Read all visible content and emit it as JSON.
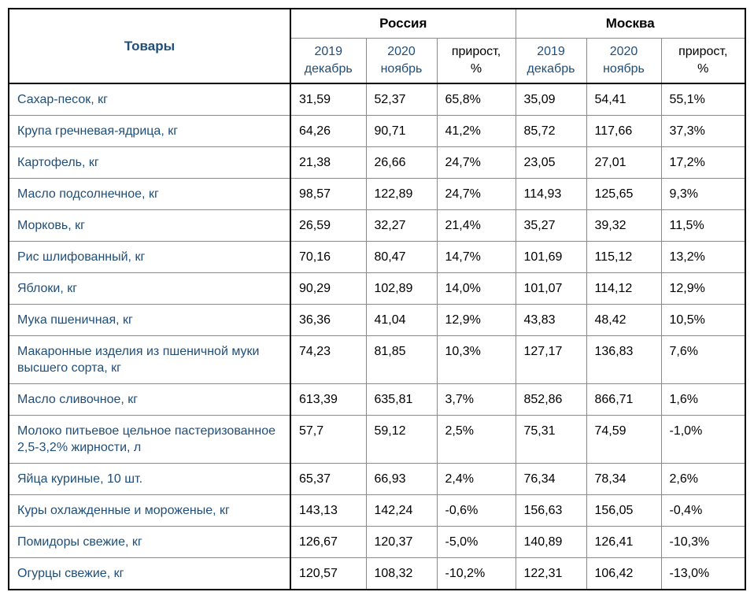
{
  "table": {
    "title_column": "Товары",
    "region_groups": [
      "Россия",
      "Москва"
    ],
    "column_headers": [
      {
        "line1": "2019",
        "line2": "декабрь"
      },
      {
        "line1": "2020",
        "line2": "ноябрь"
      },
      {
        "line1": "прирост,",
        "line2": "%"
      }
    ],
    "rows": [
      {
        "product": "Сахар-песок, кг",
        "values": [
          "31,59",
          "52,37",
          "65,8%",
          "35,09",
          "54,41",
          "55,1%"
        ]
      },
      {
        "product": "Крупа гречневая-ядрица, кг",
        "values": [
          "64,26",
          "90,71",
          "41,2%",
          "85,72",
          "117,66",
          "37,3%"
        ]
      },
      {
        "product": "Картофель, кг",
        "values": [
          "21,38",
          "26,66",
          "24,7%",
          "23,05",
          "27,01",
          "17,2%"
        ]
      },
      {
        "product": "Масло подсолнечное, кг",
        "values": [
          "98,57",
          "122,89",
          "24,7%",
          "114,93",
          "125,65",
          "9,3%"
        ]
      },
      {
        "product": "Морковь, кг",
        "values": [
          "26,59",
          "32,27",
          "21,4%",
          "35,27",
          "39,32",
          "11,5%"
        ]
      },
      {
        "product": "Рис шлифованный, кг",
        "values": [
          "70,16",
          "80,47",
          "14,7%",
          "101,69",
          "115,12",
          "13,2%"
        ]
      },
      {
        "product": "Яблоки, кг",
        "values": [
          "90,29",
          "102,89",
          "14,0%",
          "101,07",
          "114,12",
          "12,9%"
        ]
      },
      {
        "product": "Мука пшеничная, кг",
        "values": [
          "36,36",
          "41,04",
          "12,9%",
          "43,83",
          "48,42",
          "10,5%"
        ]
      },
      {
        "product": "Макаронные изделия из пшеничной муки высшего сорта, кг",
        "values": [
          "74,23",
          "81,85",
          "10,3%",
          "127,17",
          "136,83",
          "7,6%"
        ]
      },
      {
        "product": "Масло сливочное, кг",
        "values": [
          "613,39",
          "635,81",
          "3,7%",
          "852,86",
          "866,71",
          "1,6%"
        ]
      },
      {
        "product": "Молоко питьевое цельное пастеризованное 2,5-3,2% жирности, л",
        "values": [
          "57,7",
          "59,12",
          "2,5%",
          "75,31",
          "74,59",
          "-1,0%"
        ]
      },
      {
        "product": "Яйца куриные, 10 шт.",
        "values": [
          "65,37",
          "66,93",
          "2,4%",
          "76,34",
          "78,34",
          "2,6%"
        ]
      },
      {
        "product": "Куры охлажденные и мороженые, кг",
        "values": [
          "143,13",
          "142,24",
          "-0,6%",
          "156,63",
          "156,05",
          "-0,4%"
        ]
      },
      {
        "product": "Помидоры свежие, кг",
        "values": [
          "126,67",
          "120,37",
          "-5,0%",
          "140,89",
          "126,41",
          "-10,3%"
        ]
      },
      {
        "product": "Огурцы свежие, кг",
        "values": [
          "120,57",
          "108,32",
          "-10,2%",
          "122,31",
          "106,42",
          "-13,0%"
        ]
      }
    ]
  },
  "colors": {
    "heading_blue": "#1F4E79",
    "text_black": "#000000",
    "grid_line": "#898989",
    "outer_border": "#000000"
  },
  "chart_data": {
    "type": "table",
    "title": "",
    "categories": [
      "Сахар-песок, кг",
      "Крупа гречневая-ядрица, кг",
      "Картофель, кг",
      "Масло подсолнечное, кг",
      "Морковь, кг",
      "Рис шлифованный, кг",
      "Яблоки, кг",
      "Мука пшеничная, кг",
      "Макаронные изделия из пшеничной муки высшего сорта, кг",
      "Масло сливочное, кг",
      "Молоко питьевое цельное пастеризованное 2,5-3,2% жирности, л",
      "Яйца куриные, 10 шт.",
      "Куры охлажденные и мороженые, кг",
      "Помидоры свежие, кг",
      "Огурцы свежие, кг"
    ],
    "series": [
      {
        "name": "Россия 2019 декабрь",
        "values": [
          31.59,
          64.26,
          21.38,
          98.57,
          26.59,
          70.16,
          90.29,
          36.36,
          74.23,
          613.39,
          57.7,
          65.37,
          143.13,
          126.67,
          120.57
        ]
      },
      {
        "name": "Россия 2020 ноябрь",
        "values": [
          52.37,
          90.71,
          26.66,
          122.89,
          32.27,
          80.47,
          102.89,
          41.04,
          81.85,
          635.81,
          59.12,
          66.93,
          142.24,
          120.37,
          108.32
        ]
      },
      {
        "name": "Россия прирост, %",
        "values": [
          65.8,
          41.2,
          24.7,
          24.7,
          21.4,
          14.7,
          14.0,
          12.9,
          10.3,
          3.7,
          2.5,
          2.4,
          -0.6,
          -5.0,
          -10.2
        ]
      },
      {
        "name": "Москва 2019 декабрь",
        "values": [
          35.09,
          85.72,
          23.05,
          114.93,
          35.27,
          101.69,
          101.07,
          43.83,
          127.17,
          852.86,
          75.31,
          76.34,
          156.63,
          140.89,
          122.31
        ]
      },
      {
        "name": "Москва 2020 ноябрь",
        "values": [
          54.41,
          117.66,
          27.01,
          125.65,
          39.32,
          115.12,
          114.12,
          48.42,
          136.83,
          866.71,
          74.59,
          78.34,
          156.05,
          126.41,
          106.42
        ]
      },
      {
        "name": "Москва прирост, %",
        "values": [
          55.1,
          37.3,
          17.2,
          9.3,
          11.5,
          13.2,
          12.9,
          10.5,
          7.6,
          1.6,
          -1.0,
          2.6,
          -0.4,
          -10.3,
          -13.0
        ]
      }
    ]
  }
}
